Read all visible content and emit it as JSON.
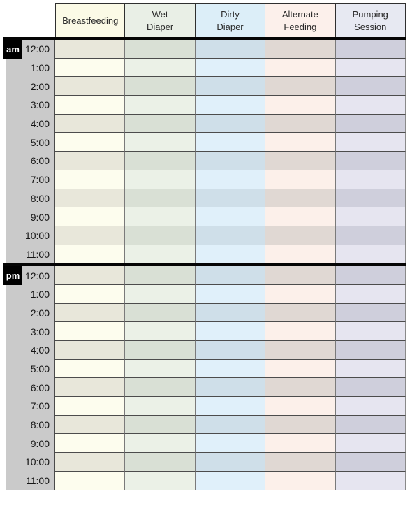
{
  "table": {
    "columns": [
      {
        "id": "breastfeeding",
        "label": "Breastfeeding",
        "header_bg": "#fbfae6",
        "row_light": "#fdfdee",
        "row_dark": "#e8e7da"
      },
      {
        "id": "wet-diaper",
        "label": "Wet\nDiaper",
        "header_bg": "#e9efe6",
        "row_light": "#ebf1e7",
        "row_dark": "#d9e0d5"
      },
      {
        "id": "dirty-diaper",
        "label": "Dirty\nDiaper",
        "header_bg": "#dceef8",
        "row_light": "#e0f0fa",
        "row_dark": "#cfdfe9"
      },
      {
        "id": "alternate-feeding",
        "label": "Alternate\nFeeding",
        "header_bg": "#fcf0eb",
        "row_light": "#fcf0ea",
        "row_dark": "#e0d8d3"
      },
      {
        "id": "pumping-session",
        "label": "Pumping\nSession",
        "header_bg": "#e7e9f2",
        "row_light": "#e6e5f0",
        "row_dark": "#cfcfdc"
      }
    ],
    "sections": [
      {
        "meridiem": "am",
        "times": [
          "12:00",
          "1:00",
          "2:00",
          "3:00",
          "4:00",
          "5:00",
          "6:00",
          "7:00",
          "8:00",
          "9:00",
          "10:00",
          "11:00"
        ]
      },
      {
        "meridiem": "pm",
        "times": [
          "12:00",
          "1:00",
          "2:00",
          "3:00",
          "4:00",
          "5:00",
          "6:00",
          "7:00",
          "8:00",
          "9:00",
          "10:00",
          "11:00"
        ]
      }
    ]
  },
  "colors": {
    "page_bg": "#ffffff",
    "time_column_bg": "#cacaca",
    "meridiem_box_bg": "#000000",
    "meridiem_text": "#ffffff",
    "header_border": "#2f2f2f",
    "row_border": "#4c4c4c",
    "column_border": "#7a7a7a",
    "divider": "#050505",
    "header_text": "#2b2b2b",
    "time_text": "#161616"
  }
}
